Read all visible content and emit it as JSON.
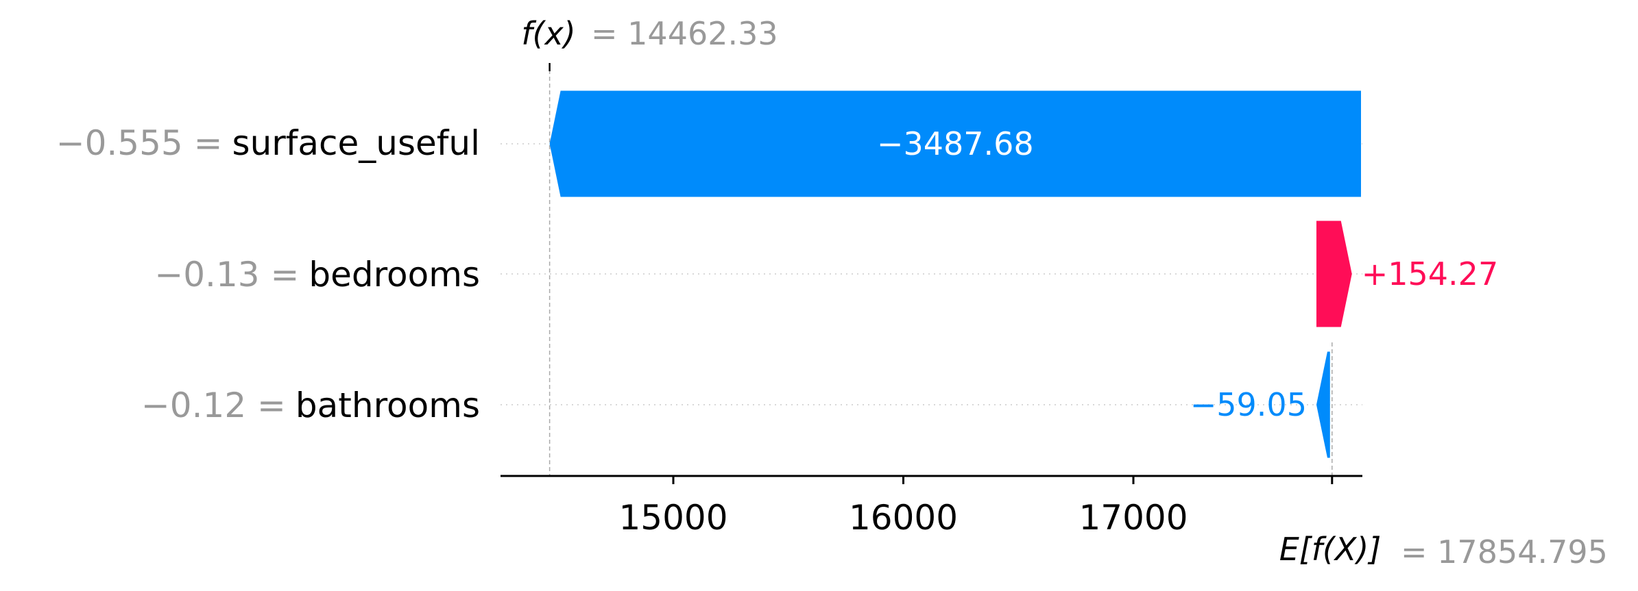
{
  "chart_data": {
    "type": "waterfall",
    "base_value": 17854.795,
    "base_label_text": "= 17854.795",
    "output_value": 14462.33,
    "output_label_text": "= 14462.33",
    "fx_symbol": "f(x)",
    "efx_symbol": "E[f(X)]",
    "features": [
      {
        "name": "surface_useful",
        "value_text": "−0.555 =",
        "contribution": -3487.68,
        "contribution_text": "−3487.68"
      },
      {
        "name": "bedrooms",
        "value_text": "−0.13 =",
        "contribution": 154.27,
        "contribution_text": "+154.27"
      },
      {
        "name": "bathrooms",
        "value_text": "−0.12 =",
        "contribution": -59.05,
        "contribution_text": "−59.05"
      }
    ],
    "x_ticks": [
      15000,
      16000,
      17000
    ],
    "x_tick_labels": [
      "15000",
      "16000",
      "17000"
    ],
    "xlim": [
      14250,
      17850
    ],
    "colors": {
      "positive": "#ff0d57",
      "negative": "#008bfb",
      "value_text": "#999999",
      "label_text": "#000000"
    }
  }
}
